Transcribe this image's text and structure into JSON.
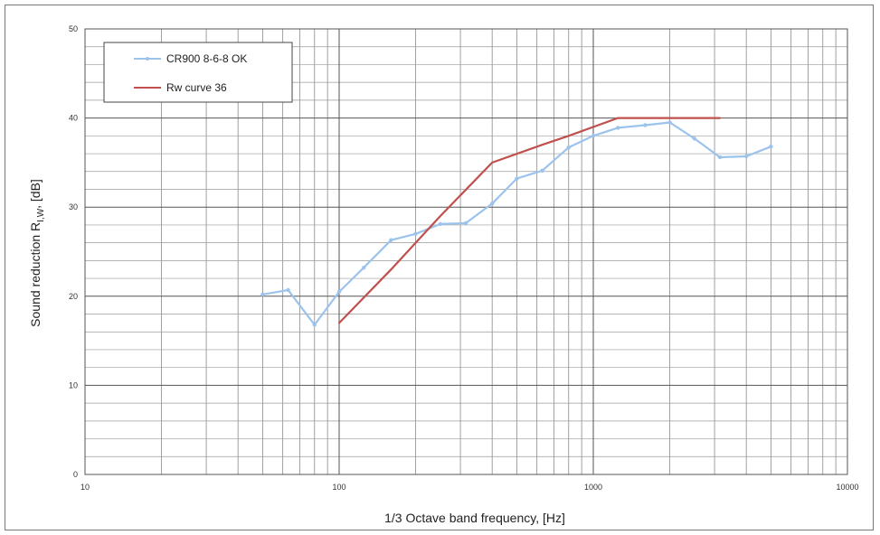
{
  "chart_data": {
    "type": "line",
    "xscale": "log",
    "xlim": [
      10,
      10000
    ],
    "ylim": [
      0,
      50
    ],
    "grid": true,
    "legend_position": "top-left",
    "xlabel": "1/3 Octave band frequency, [Hz]",
    "ylabel": "Sound reduction R",
    "ylabel_subscript": "I,W",
    "ylabel_suffix": ", [dB]",
    "x_tick_labels": [
      "10",
      "100",
      "1000",
      "10000"
    ],
    "x_tick_values": [
      10,
      100,
      1000,
      10000
    ],
    "y_tick_values": [
      0,
      10,
      20,
      30,
      40,
      50
    ],
    "y_tick_labels": [
      "0",
      "10",
      "20",
      "30",
      "40",
      "50"
    ],
    "series": [
      {
        "name": "CR900 8-6-8 OK",
        "color": "#9cc3ec",
        "marker": "dot",
        "x": [
          50,
          63,
          80,
          100,
          125,
          160,
          200,
          250,
          315,
          400,
          500,
          630,
          800,
          1000,
          1250,
          1600,
          2000,
          2500,
          3150,
          4000,
          5000
        ],
        "y": [
          20.2,
          20.7,
          16.8,
          20.5,
          23.2,
          26.3,
          27.0,
          28.1,
          28.2,
          30.4,
          33.2,
          34.1,
          36.7,
          38.0,
          38.9,
          39.2,
          39.5,
          37.7,
          35.6,
          35.7,
          36.8
        ]
      },
      {
        "name": "Rw curve 36",
        "color": "#c0504d",
        "marker": "none",
        "x": [
          100,
          160,
          250,
          400,
          630,
          800,
          1250,
          3150
        ],
        "y": [
          17,
          23,
          29,
          35,
          37,
          38,
          40,
          40
        ]
      }
    ]
  }
}
